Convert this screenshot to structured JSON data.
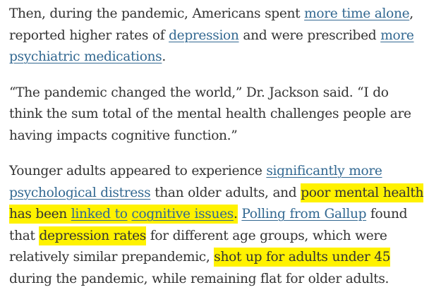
{
  "colors": {
    "text": "#333333",
    "link": "#326891",
    "highlight": "#fff200",
    "background": "#ffffff"
  },
  "paragraphs": [
    {
      "segments": [
        {
          "text": "Then, during the pandemic, Americans spent "
        },
        {
          "text": "more time alone",
          "link": true
        },
        {
          "text": ", reported higher rates of "
        },
        {
          "text": "depression",
          "link": true
        },
        {
          "text": " and were prescribed "
        },
        {
          "text": "more psychiatric medications",
          "link": true
        },
        {
          "text": "."
        }
      ]
    },
    {
      "segments": [
        {
          "text": "“The pandemic changed the world,” Dr. Jackson said. “I do think the sum total of the mental health challenges people are having impacts cognitive function.”"
        }
      ]
    },
    {
      "segments": [
        {
          "text": "Younger adults appeared to experience "
        },
        {
          "text": "significantly more psychological distress",
          "link": true
        },
        {
          "text": " than older adults, and "
        },
        {
          "text": "poor mental health has been ",
          "highlight": true
        },
        {
          "text": "linked to",
          "link": true,
          "highlight": true
        },
        {
          "text": " ",
          "highlight": true
        },
        {
          "text": "cognitive issues",
          "link": true,
          "highlight": true
        },
        {
          "text": ".",
          "highlight": true
        },
        {
          "text": " "
        },
        {
          "text": "Polling from Gallup",
          "link": true
        },
        {
          "text": " found that "
        },
        {
          "text": "depression rates",
          "highlight": true
        },
        {
          "text": " for different age groups, which were relatively similar prepandemic, "
        },
        {
          "text": "shot up for adults under 45",
          "highlight": true
        },
        {
          "text": " during the pandemic, while remaining flat for older adults."
        }
      ]
    }
  ]
}
